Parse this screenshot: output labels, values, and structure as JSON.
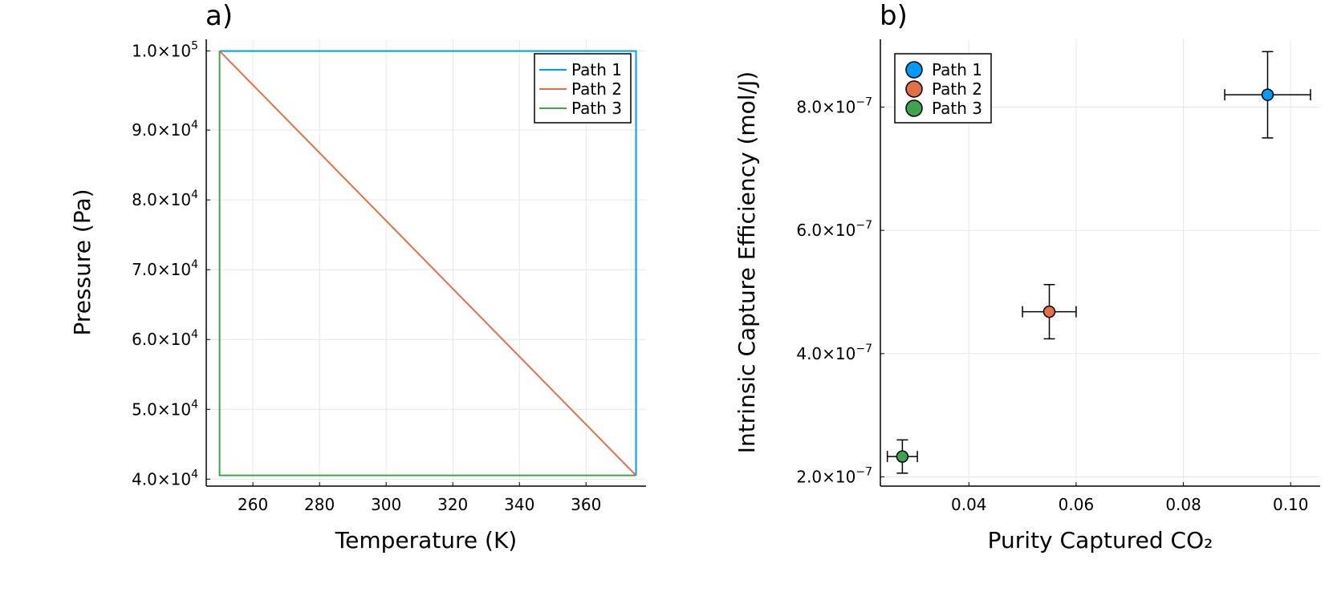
{
  "chart_data": [
    {
      "type": "line",
      "panel_label": "a)",
      "xlabel": "Temperature (K)",
      "ylabel": "Pressure (Pa)",
      "xlim": [
        246,
        378
      ],
      "ylim": [
        39000,
        103000
      ],
      "xticks": [
        260,
        280,
        300,
        320,
        340,
        360
      ],
      "yticks": [
        {
          "value": 40000,
          "mant": "4.0×10",
          "exp": "4"
        },
        {
          "value": 50000,
          "mant": "5.0×10",
          "exp": "4"
        },
        {
          "value": 60000,
          "mant": "6.0×10",
          "exp": "4"
        },
        {
          "value": 70000,
          "mant": "7.0×10",
          "exp": "4"
        },
        {
          "value": 80000,
          "mant": "8.0×10",
          "exp": "4"
        },
        {
          "value": 90000,
          "mant": "9.0×10",
          "exp": "4"
        },
        {
          "value": 101325,
          "mant": "1.0×10",
          "exp": "5"
        }
      ],
      "grid": true,
      "legend": "top-right",
      "series": [
        {
          "name": "Path 1",
          "color": "#009AFA",
          "x": [
            250,
            250,
            375,
            375
          ],
          "y": [
            101325,
            101325,
            101325,
            40530
          ]
        },
        {
          "name": "Path 2",
          "color": "#E36F47",
          "x": [
            250,
            375
          ],
          "y": [
            101325,
            40530
          ]
        },
        {
          "name": "Path 3",
          "color": "#3EA44E",
          "x": [
            250,
            250,
            375
          ],
          "y": [
            101325,
            40530,
            40530
          ]
        }
      ]
    },
    {
      "type": "scatter",
      "panel_label": "b)",
      "xlabel": "Purity Captured CO₂",
      "ylabel": "Intrinsic Capture Efficiency (mol/J)",
      "xlim": [
        0.0235,
        0.1055
      ],
      "ylim": [
        1.85e-07,
        9.1e-07
      ],
      "xticks": [
        {
          "value": 0.04,
          "label": "0.04"
        },
        {
          "value": 0.06,
          "label": "0.06"
        },
        {
          "value": 0.08,
          "label": "0.08"
        },
        {
          "value": 0.1,
          "label": "0.10"
        }
      ],
      "yticks": [
        {
          "value": 2e-07,
          "mant": "2.0×10",
          "exp": "−7"
        },
        {
          "value": 4e-07,
          "mant": "4.0×10",
          "exp": "−7"
        },
        {
          "value": 6e-07,
          "mant": "6.0×10",
          "exp": "−7"
        },
        {
          "value": 8e-07,
          "mant": "8.0×10",
          "exp": "−7"
        }
      ],
      "grid": true,
      "legend": "top-left",
      "series": [
        {
          "name": "Path 1",
          "color": "#009AFA",
          "x": 0.0957,
          "y": 8.2e-07,
          "xerr": 0.008,
          "yerr": 7e-08
        },
        {
          "name": "Path 2",
          "color": "#E36F47",
          "x": 0.055,
          "y": 4.68e-07,
          "xerr": 0.005,
          "yerr": 4.4e-08
        },
        {
          "name": "Path 3",
          "color": "#3EA44E",
          "x": 0.0276,
          "y": 2.33e-07,
          "xerr": 0.0028,
          "yerr": 2.7e-08
        }
      ]
    }
  ]
}
